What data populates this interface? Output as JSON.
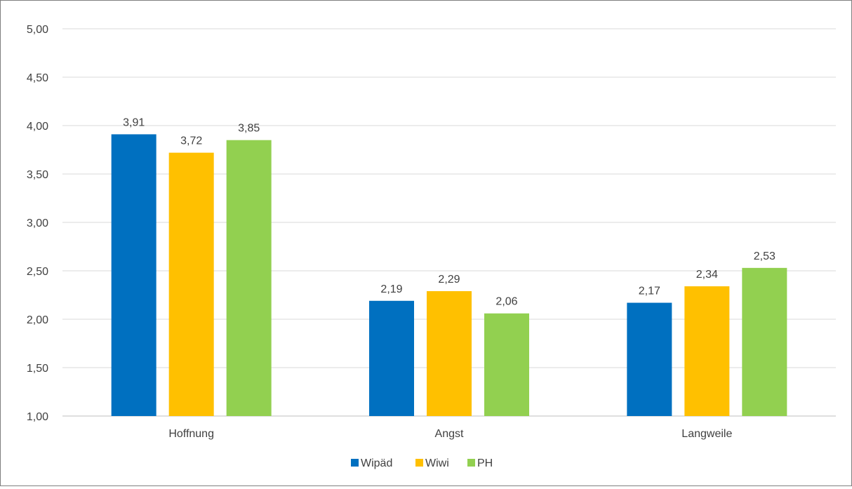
{
  "chart_data": {
    "type": "bar",
    "categories": [
      "Hoffnung",
      "Angst",
      "Langweile"
    ],
    "series": [
      {
        "name": "Wipäd",
        "color": "#0070c0",
        "values": [
          3.91,
          2.19,
          2.17
        ],
        "labels": [
          "3,91",
          "2,19",
          "2,17"
        ]
      },
      {
        "name": "Wiwi",
        "color": "#ffc000",
        "values": [
          3.72,
          2.29,
          2.34
        ],
        "labels": [
          "3,72",
          "2,29",
          "2,34"
        ]
      },
      {
        "name": "PH",
        "color": "#92d050",
        "values": [
          3.85,
          2.06,
          2.53
        ],
        "labels": [
          "3,85",
          "2,06",
          "2,53"
        ]
      }
    ],
    "ylim": [
      1.0,
      5.0
    ],
    "yticks": [
      1.0,
      1.5,
      2.0,
      2.5,
      3.0,
      3.5,
      4.0,
      4.5,
      5.0
    ],
    "ytick_labels": [
      "1,00",
      "1,50",
      "2,00",
      "2,50",
      "3,00",
      "3,50",
      "4,00",
      "4,50",
      "5,00"
    ],
    "grid": true,
    "legend_position": "bottom"
  }
}
